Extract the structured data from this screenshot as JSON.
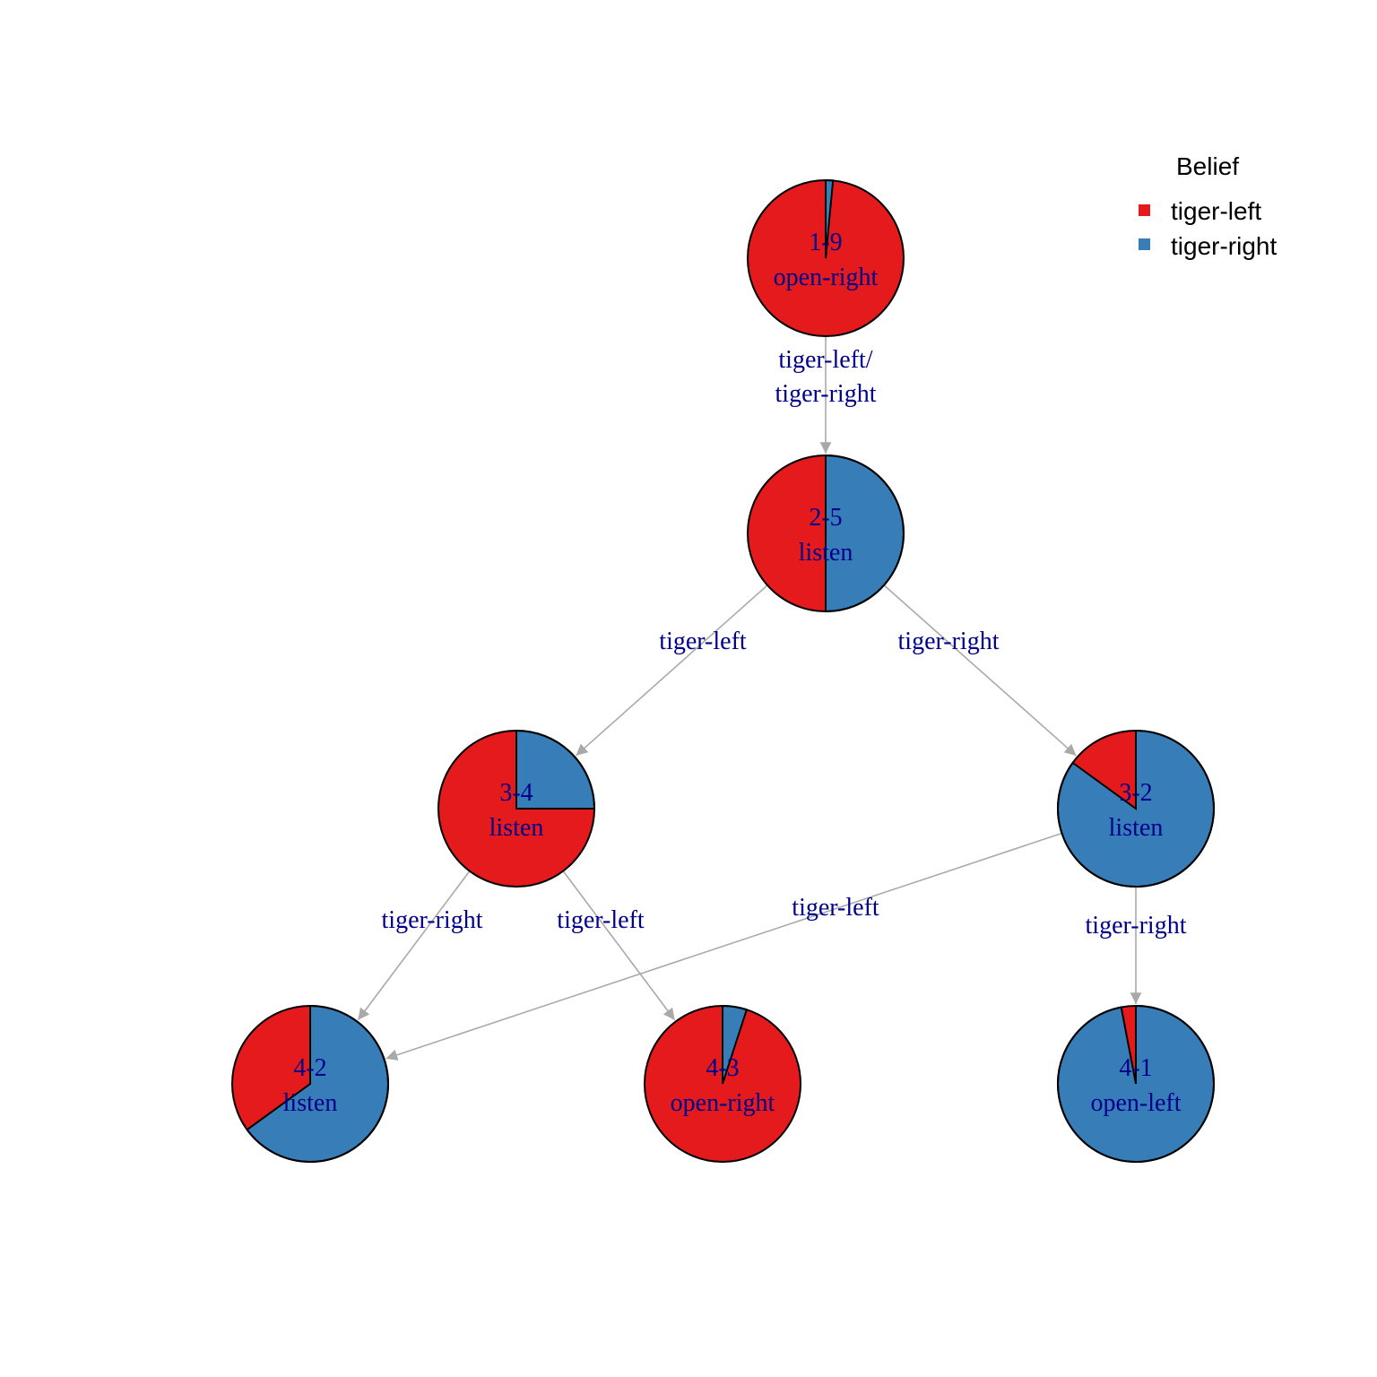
{
  "legend": {
    "title": "Belief",
    "items": [
      {
        "label": "tiger-left",
        "color": "#E41A1C"
      },
      {
        "label": "tiger-right",
        "color": "#377EB8"
      }
    ]
  },
  "nodes": [
    {
      "id": "1-9",
      "action": "open-right",
      "belief": {
        "tiger-left": 0.985,
        "tiger-right": 0.015
      }
    },
    {
      "id": "2-5",
      "action": "listen",
      "belief": {
        "tiger-left": 0.5,
        "tiger-right": 0.5
      }
    },
    {
      "id": "3-4",
      "action": "listen",
      "belief": {
        "tiger-left": 0.75,
        "tiger-right": 0.25
      }
    },
    {
      "id": "3-2",
      "action": "listen",
      "belief": {
        "tiger-left": 0.15,
        "tiger-right": 0.85
      }
    },
    {
      "id": "4-2",
      "action": "listen",
      "belief": {
        "tiger-left": 0.35,
        "tiger-right": 0.65
      }
    },
    {
      "id": "4-3",
      "action": "open-right",
      "belief": {
        "tiger-left": 0.95,
        "tiger-right": 0.05
      }
    },
    {
      "id": "4-1",
      "action": "open-left",
      "belief": {
        "tiger-left": 0.03,
        "tiger-right": 0.97
      }
    }
  ],
  "edges": [
    {
      "from": "1-9",
      "to": "2-5",
      "label": [
        "tiger-left/",
        "tiger-right"
      ]
    },
    {
      "from": "2-5",
      "to": "3-4",
      "label": [
        "tiger-left"
      ]
    },
    {
      "from": "2-5",
      "to": "3-2",
      "label": [
        "tiger-right"
      ]
    },
    {
      "from": "3-4",
      "to": "4-2",
      "label": [
        "tiger-right"
      ]
    },
    {
      "from": "3-4",
      "to": "4-3",
      "label": [
        "tiger-left"
      ]
    },
    {
      "from": "3-2",
      "to": "4-2",
      "label": [
        "tiger-left"
      ]
    },
    {
      "from": "3-2",
      "to": "4-1",
      "label": [
        "tiger-right"
      ]
    }
  ]
}
